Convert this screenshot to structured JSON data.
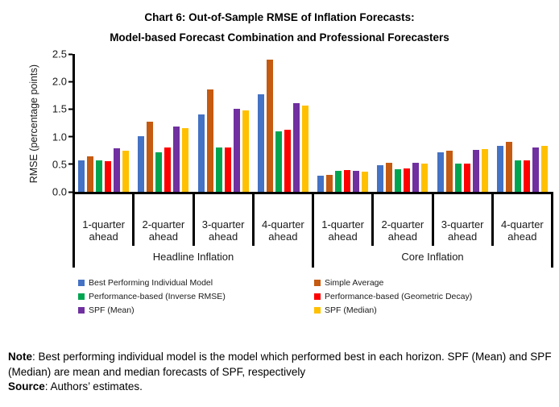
{
  "title": {
    "line1": "Chart 6: Out-of-Sample RMSE of Inflation Forecasts:",
    "line2": "Model-based Forecast Combination and Professional Forecasters"
  },
  "chart_data": {
    "type": "bar",
    "title": "Chart 6: Out-of-Sample RMSE of Inflation Forecasts: Model-based Forecast Combination and Professional Forecasters",
    "ylabel": "RMSE (percentage points)",
    "xlabel": "",
    "ylim": [
      0,
      2.5
    ],
    "yticks": [
      2.5,
      2.0,
      1.5,
      1.0,
      0.5,
      0.0
    ],
    "grid": false,
    "legend_position": "bottom",
    "categories": [
      "1-quarter ahead",
      "2-quarter ahead",
      "3-quarter ahead",
      "4-quarter ahead",
      "1-quarter ahead",
      "2-quarter ahead",
      "3-quarter ahead",
      "4-quarter ahead"
    ],
    "sections": [
      {
        "label": "Headline Inflation",
        "span": 4
      },
      {
        "label": "Core Inflation",
        "span": 4
      }
    ],
    "series": [
      {
        "name": "Best Performing Individual Model",
        "color": "#4472C4",
        "values": [
          0.57,
          1.01,
          1.41,
          1.77,
          0.29,
          0.48,
          0.71,
          0.84
        ]
      },
      {
        "name": "Simple Average",
        "color": "#C55A11",
        "values": [
          0.65,
          1.27,
          1.85,
          2.4,
          0.31,
          0.52,
          0.74,
          0.9
        ]
      },
      {
        "name": "Performance-based (Inverse RMSE)",
        "color": "#00A550",
        "values": [
          0.57,
          0.72,
          0.8,
          1.1,
          0.38,
          0.41,
          0.51,
          0.57
        ]
      },
      {
        "name": "Performance-based (Geometric Decay)",
        "color": "#FE0000",
        "values": [
          0.55,
          0.81,
          0.8,
          1.12,
          0.39,
          0.42,
          0.51,
          0.57
        ]
      },
      {
        "name": "SPF (Mean)",
        "color": "#7030A0",
        "values": [
          0.79,
          1.18,
          1.5,
          1.61,
          0.38,
          0.52,
          0.76,
          0.81
        ]
      },
      {
        "name": "SPF (Median)",
        "color": "#FFC000",
        "values": [
          0.74,
          1.15,
          1.48,
          1.57,
          0.36,
          0.51,
          0.77,
          0.84
        ]
      }
    ]
  },
  "notes": {
    "note_label": "Note",
    "note_body": ": Best performing individual model is the model which performed best in each horizon. SPF (Mean) and SPF (Median) are mean and median forecasts of SPF, respectively",
    "source_label": "Source",
    "source_body": ": Authors’ estimates."
  }
}
